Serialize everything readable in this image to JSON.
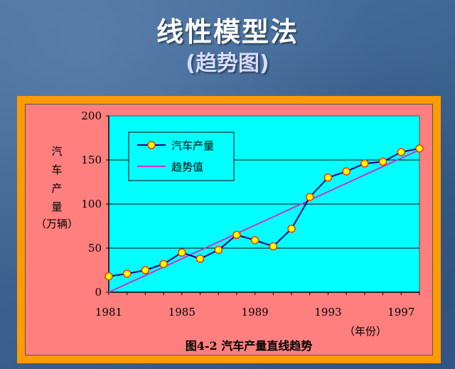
{
  "slide": {
    "title": "线性模型法",
    "subtitle": "(趋势图)"
  },
  "colors": {
    "background": "#3f6796",
    "frame_border": "#ff9a00",
    "frame_fill": "#ff7f7f",
    "plot_fill": "#00ffff",
    "series_actual": "#000080",
    "series_trend": "#cc33cc",
    "marker_fill": "#ffff00",
    "marker_edge": "#ff3300"
  },
  "chart_data": {
    "type": "line",
    "title": "图4-2  汽车产量直线趋势",
    "ylabel_vertical": "汽车产量",
    "ylabel_unit": "（万辆）",
    "xlabel_unit": "（年份）",
    "xlim": [
      1981,
      1998
    ],
    "ylim": [
      0,
      200
    ],
    "x_ticks": [
      1981,
      1985,
      1989,
      1993,
      1997
    ],
    "y_ticks": [
      0,
      50,
      100,
      150,
      200
    ],
    "grid": "horizontal",
    "legend_position": "top-left",
    "x": [
      1981,
      1982,
      1983,
      1984,
      1985,
      1986,
      1987,
      1988,
      1989,
      1990,
      1991,
      1992,
      1993,
      1994,
      1995,
      1996,
      1997,
      1998
    ],
    "series": [
      {
        "name": "汽车产量",
        "values": [
          18,
          21,
          25,
          32,
          45,
          38,
          48,
          65,
          59,
          52,
          72,
          108,
          130,
          137,
          146,
          148,
          159,
          163
        ],
        "markers": true
      },
      {
        "name": "趋势值",
        "values": [
          0,
          9.5,
          19,
          28.5,
          38,
          47.5,
          57,
          66.5,
          76,
          85.5,
          95,
          104.5,
          114,
          123.5,
          133,
          142.5,
          152,
          161.5
        ],
        "markers": false
      }
    ]
  }
}
